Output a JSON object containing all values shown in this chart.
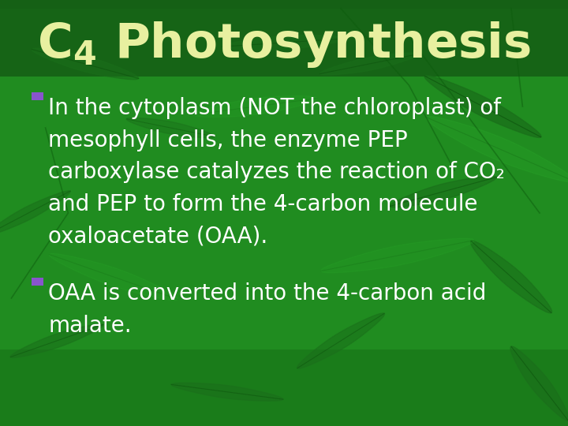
{
  "title": "C₄ Photosynthesis",
  "title_color": "#e8f0a0",
  "title_fontsize": 44,
  "bg_color_dark": "#1a7a1a",
  "bg_color_mid": "#208c20",
  "bg_color_bright": "#22a022",
  "text_color": "#ffffff",
  "bullet_color": "#8855cc",
  "bullet1_lines": [
    "In the cytoplasm (NOT the chloroplast) of",
    "mesophyll cells, the enzyme PEP",
    "carboxylase catalyzes the reaction of CO₂",
    "and PEP to form the 4-carbon molecule",
    "oxaloacetate (OAA)."
  ],
  "bullet2_lines": [
    "OAA is converted into the 4-carbon acid",
    "malate."
  ],
  "body_fontsize": 20
}
